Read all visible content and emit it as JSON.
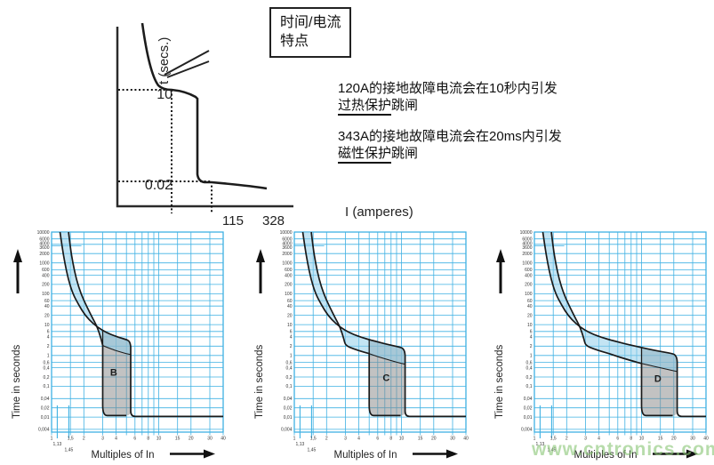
{
  "colors": {
    "grid_blue": "#3fb1e3",
    "band_blue": "#92cdea",
    "magnetic_gray": "#8a8a8a",
    "curve_black": "#1a1a1a",
    "watermark_green": "#8ac778"
  },
  "top_diagram": {
    "y_axis_label": "t (secs.)",
    "x_axis_label": "I (amperes)",
    "y_tick_upper": "10",
    "y_tick_lower": "0.02",
    "x_tick_left": "115",
    "x_tick_right": "328",
    "callout_line1": "时间/电流",
    "callout_line2": "特点",
    "note1": {
      "line1": "120A的接地故障电流会在10秒内引发",
      "underlined": "过热保护",
      "rest": "跳闸"
    },
    "note2": {
      "line1": "343A的接地故障电流会在20ms内引发",
      "underlined": "磁性保护",
      "rest": "跳闸"
    }
  },
  "watermark": "www.cntronics.com",
  "chart_data": {
    "overview": {
      "type": "line",
      "title": "时间/电流特点",
      "xlabel": "I (amperes)",
      "ylabel": "t (secs.)",
      "x_ticks": [
        115,
        328
      ],
      "y_ticks": [
        10,
        0.02
      ],
      "marked_points": [
        {
          "current_A": 115,
          "time_s": 10,
          "note": "120A的接地故障电流会在10秒内引发过热保护跳闸"
        },
        {
          "current_A": 328,
          "time_s": 0.02,
          "note": "343A的接地故障电流会在20ms内引发磁性保护跳闸"
        }
      ]
    },
    "trip_curves": {
      "type": "area",
      "xlabel": "Multiples of In",
      "ylabel": "Time in seconds",
      "x_scale": "log",
      "y_scale": "log",
      "xlim": [
        1,
        40
      ],
      "ylim": [
        0.004,
        10000
      ],
      "grid": true,
      "x_tick_labels": [
        [
          "1",
          1
        ],
        [
          "1,5",
          1.5
        ],
        [
          "2",
          2
        ],
        [
          "3",
          3
        ],
        [
          "4",
          4
        ],
        [
          "6",
          6
        ],
        [
          "8",
          8
        ],
        [
          "10",
          10
        ],
        [
          "15",
          15
        ],
        [
          "20",
          20
        ],
        [
          "30",
          30
        ],
        [
          "40",
          40
        ]
      ],
      "x_special_ticks": [
        [
          "1,13",
          1.13
        ],
        [
          "1,45",
          1.45
        ]
      ],
      "y_tick_labels": [
        [
          "10000",
          10000
        ],
        [
          "6000",
          6000
        ],
        [
          "4000",
          4000
        ],
        [
          "3600",
          3600
        ],
        [
          "2000",
          2000
        ],
        [
          "1000",
          1000
        ],
        [
          "600",
          600
        ],
        [
          "400",
          400
        ],
        [
          "200",
          200
        ],
        [
          "100",
          100
        ],
        [
          "60",
          60
        ],
        [
          "40",
          40
        ],
        [
          "20",
          20
        ],
        [
          "10",
          10
        ],
        [
          "6",
          6
        ],
        [
          "4",
          4
        ],
        [
          "2",
          2
        ],
        [
          "1",
          1
        ],
        [
          "0,6",
          0.6
        ],
        [
          "0,4",
          0.4
        ],
        [
          "0,2",
          0.2
        ],
        [
          "0,1",
          0.1
        ],
        [
          "0,04",
          0.04
        ],
        [
          "0,02",
          0.02
        ],
        [
          "0,01",
          0.01
        ],
        [
          "0,004",
          0.004
        ]
      ],
      "grid_x": [
        1.5,
        2,
        3,
        4,
        5,
        6,
        7,
        8,
        9,
        10,
        15,
        20,
        30,
        40
      ],
      "instant_trip_floor_s": 0.01,
      "upper_master": [
        [
          1.2,
          10000
        ],
        [
          1.26,
          3000
        ],
        [
          1.33,
          1000
        ],
        [
          1.43,
          300
        ],
        [
          1.58,
          100
        ],
        [
          1.78,
          45
        ],
        [
          2.05,
          20
        ],
        [
          2.45,
          10.5
        ],
        [
          2.95,
          6.6
        ],
        [
          3.6,
          4.7
        ],
        [
          4.4,
          3.7
        ],
        [
          5,
          3.25
        ],
        [
          6,
          2.75
        ],
        [
          7,
          2.4
        ],
        [
          8,
          2.15
        ],
        [
          10,
          1.8
        ],
        [
          12.5,
          1.52
        ],
        [
          16,
          1.3
        ],
        [
          20,
          1.12
        ]
      ],
      "lower_master": [
        [
          1.44,
          10000
        ],
        [
          1.5,
          3000
        ],
        [
          1.58,
          1000
        ],
        [
          1.7,
          300
        ],
        [
          1.88,
          100
        ],
        [
          2.12,
          40
        ],
        [
          2.42,
          16
        ],
        [
          2.62,
          9.5
        ],
        [
          2.78,
          5.5
        ],
        [
          2.9,
          3.4
        ],
        [
          3,
          2.1
        ],
        [
          3.6,
          1.62
        ],
        [
          4.2,
          1.35
        ],
        [
          5,
          1.15
        ],
        [
          5.8,
          0.95
        ],
        [
          7,
          0.78
        ],
        [
          8.5,
          0.64
        ],
        [
          10,
          0.55
        ],
        [
          12,
          0.47
        ],
        [
          15,
          0.4
        ],
        [
          18,
          0.345
        ],
        [
          21.5,
          0.3
        ]
      ],
      "charts": [
        {
          "label": "B",
          "magnetic_range": [
            3,
            5
          ],
          "m1": 3,
          "m2": 5,
          "yL1": 2.1,
          "yU1": 6.5,
          "dropX": 5.48,
          "corner": [
            [
              5.25,
              3.0
            ],
            [
              5.42,
              2.5
            ],
            [
              5.48,
              1.9
            ]
          ],
          "diag_end_y": 1.06,
          "label_pos": [
            3.8,
            0.22
          ]
        },
        {
          "label": "C",
          "magnetic_range": [
            5,
            10
          ],
          "m1": 5,
          "m2": 10,
          "yL1": 1.15,
          "yU1": 3.25,
          "dropX": 10.82,
          "corner": [
            [
              10.35,
              1.65
            ],
            [
              10.72,
              1.35
            ],
            [
              10.82,
              1.0
            ]
          ],
          "diag_end_y": 0.52,
          "label_pos": [
            7.2,
            0.15
          ]
        },
        {
          "label": "D",
          "magnetic_range": [
            10,
            20
          ],
          "m1": 10,
          "m2": 20,
          "yL1": 0.55,
          "yU1": 1.8,
          "dropX": 21.5,
          "corner": [
            [
              20.7,
              1.0
            ],
            [
              21.35,
              0.82
            ],
            [
              21.5,
              0.62
            ]
          ],
          "diag_end_y": 0.3,
          "label_pos": [
            14.2,
            0.14
          ]
        }
      ]
    }
  }
}
